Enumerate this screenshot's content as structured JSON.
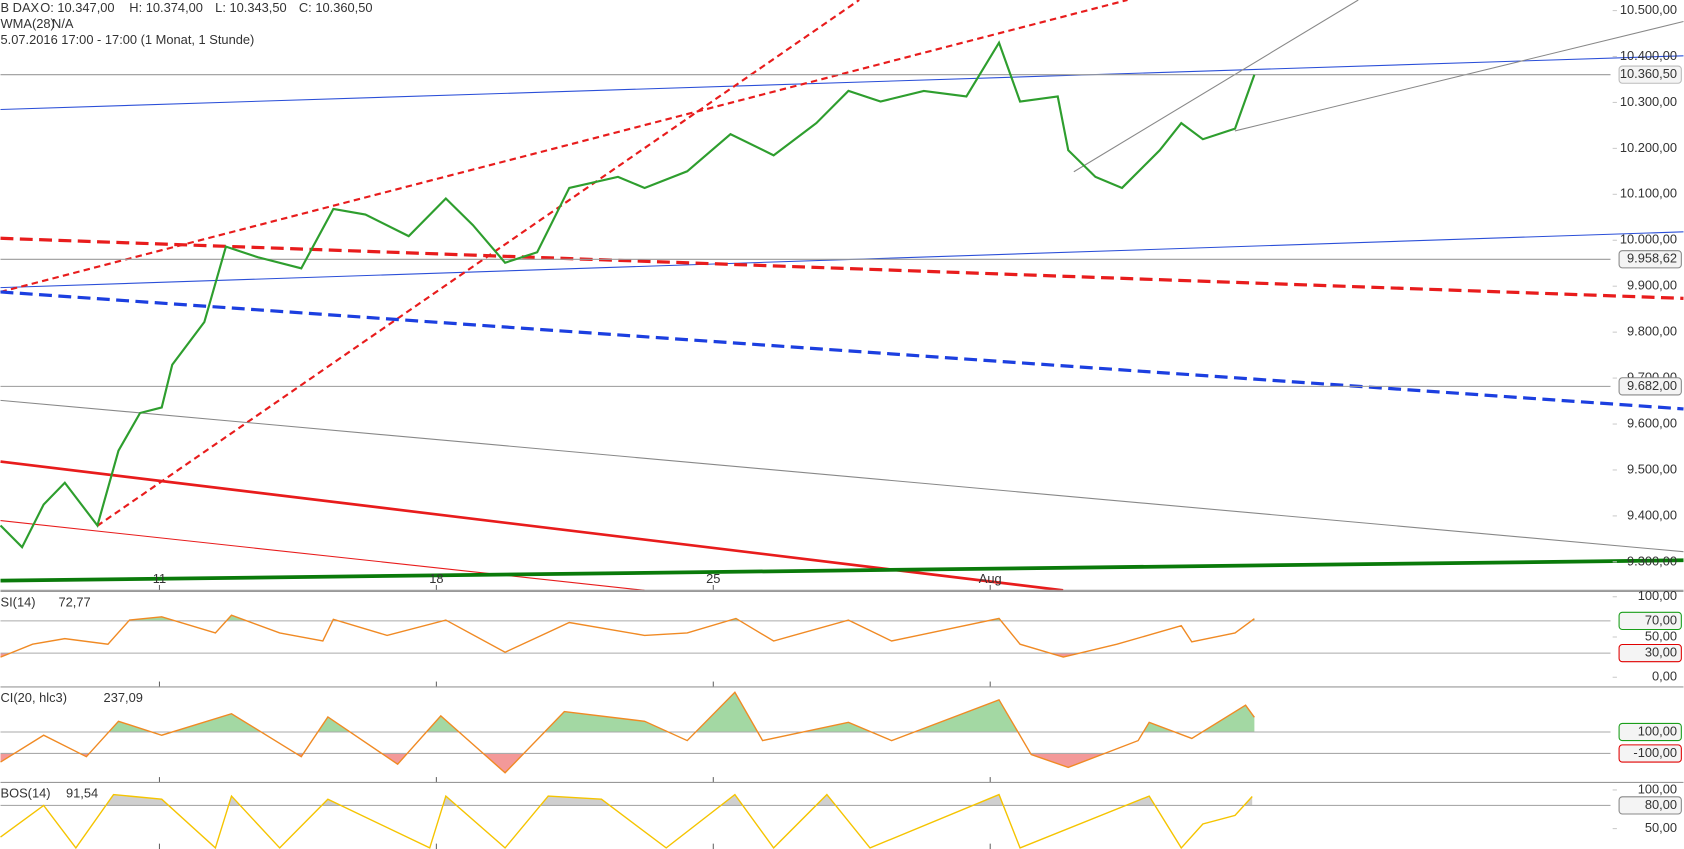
{
  "chart_data": [
    {
      "type": "line",
      "title": "B DAX",
      "annotations": [
        "O: 10.347,00",
        "H: 10.374,00",
        "L: 10.343,50",
        "C: 10.360,50",
        "WMA(28)",
        "N/A",
        "5.07.2016 17:00 - 17:00 (1 Monat, 1 Stunde)"
      ],
      "x": [
        -2.87,
        -2.48,
        -2.09,
        -1.71,
        -1.12,
        -0.74,
        -0.35,
        0.04,
        0.23,
        0.81,
        1.2,
        1.78,
        2.56,
        3.14,
        3.72,
        4.5,
        5.17,
        5.66,
        6.24,
        6.82,
        7.4,
        8.28,
        8.76,
        9.53,
        10.31,
        11.09,
        11.86,
        12.44,
        13.02,
        13.8,
        14.57,
        15.16,
        15.54,
        16.22,
        16.41,
        16.9,
        17.38,
        18.06,
        18.45,
        18.84,
        19.42,
        19.77
      ],
      "values": [
        9379,
        9332,
        9425,
        9472,
        9379,
        9542,
        9624,
        9636,
        9729,
        9822,
        9986,
        9963,
        9939,
        10068,
        10056,
        10009,
        10091,
        10033,
        9951,
        9974,
        10114,
        10138,
        10114,
        10150,
        10231,
        10185,
        10255,
        10325,
        10302,
        10325,
        10313,
        10430,
        10302,
        10313,
        10196,
        10138,
        10114,
        10196,
        10255,
        10220,
        10243,
        10360.5
      ],
      "color": "#2e9e2e",
      "xlim": [
        -2.87,
        26.2
      ],
      "xticks": [
        {
          "value": 0,
          "label": "11"
        },
        {
          "value": 5,
          "label": "18"
        },
        {
          "value": 10,
          "label": "25"
        },
        {
          "value": 15,
          "label": "Aug"
        }
      ],
      "ylim": [
        9238,
        10523
      ],
      "yticks": [
        {
          "value": 9300,
          "label": "9.300,00"
        },
        {
          "value": 9400,
          "label": "9.400,00"
        },
        {
          "value": 9500,
          "label": "9.500,00"
        },
        {
          "value": 9600,
          "label": "9.600,00"
        },
        {
          "value": 9700,
          "label": "9.700,00"
        },
        {
          "value": 9800,
          "label": "9.800,00"
        },
        {
          "value": 9900,
          "label": "9.900,00"
        },
        {
          "value": 10000,
          "label": "10.000,00"
        },
        {
          "value": 10100,
          "label": "10.100,00"
        },
        {
          "value": 10200,
          "label": "10.200,00"
        },
        {
          "value": 10300,
          "label": "10.300,00"
        },
        {
          "value": 10400,
          "label": "10.400,00"
        },
        {
          "value": 10500,
          "label": "10.500,00"
        }
      ],
      "levels": [
        {
          "value": 9958.62,
          "label": "9.958,62",
          "color": "#888888"
        },
        {
          "value": 9682,
          "label": "9.682,00",
          "color": "#888888"
        },
        {
          "value": 10360.5,
          "label": "10.360,50",
          "color": "#bbbbbb"
        }
      ]
    },
    {
      "type": "line",
      "title": "SI(14)",
      "annotations": [
        "72,77"
      ],
      "color": "#f08a24",
      "x": [
        -2.87,
        -2.29,
        -1.71,
        -0.93,
        -0.54,
        0.04,
        1.01,
        1.3,
        2.17,
        2.95,
        3.14,
        4.11,
        5.17,
        6.24,
        7.4,
        8.76,
        9.53,
        10.41,
        11.09,
        12.44,
        13.22,
        15.16,
        15.54,
        16.32,
        17.29,
        18.45,
        18.64,
        19.42,
        19.77
      ],
      "values": [
        25,
        41,
        48,
        41,
        71,
        75,
        55,
        77,
        55,
        45,
        72,
        52,
        71,
        31,
        68,
        52,
        55,
        73,
        45,
        71,
        45,
        73,
        41,
        25,
        41,
        64,
        44,
        55,
        72.77
      ],
      "ylim": [
        -12,
        105.3
      ],
      "yticks": [
        {
          "value": 100,
          "label": "100,00"
        },
        {
          "value": 50,
          "label": "50,00"
        },
        {
          "value": 0,
          "label": "0,00"
        }
      ],
      "levels": [
        {
          "value": 70,
          "label": "70,00",
          "color": "#1a9e1a",
          "fill": "above"
        },
        {
          "value": 30,
          "label": "30,00",
          "color": "#e00000",
          "fill": "below"
        }
      ]
    },
    {
      "type": "line",
      "title": "CI(20, hlc3)",
      "annotations": [
        "237,09"
      ],
      "color": "#f08a24",
      "x": [
        -2.87,
        -2.09,
        -1.32,
        -0.74,
        0.04,
        1.3,
        2.56,
        3.04,
        4.3,
        5.08,
        6.24,
        7.31,
        8.76,
        9.53,
        10.39,
        10.89,
        12.44,
        13.22,
        15.16,
        15.74,
        16.41,
        17.67,
        17.87,
        18.64,
        19.61,
        19.77
      ],
      "values": [
        -180,
        70,
        -130,
        200,
        70,
        270,
        -130,
        240,
        -200,
        250,
        -280,
        290,
        200,
        20,
        470,
        20,
        190,
        20,
        400,
        -110,
        -230,
        20,
        190,
        40,
        350,
        237.09
      ],
      "ylim": [
        -370,
        510
      ],
      "yticks": [],
      "levels": [
        {
          "value": 100,
          "label": "100,00",
          "color": "#1a9e1a",
          "fill": "above"
        },
        {
          "value": -100,
          "label": "-100,00",
          "color": "#e00000",
          "fill": "below"
        }
      ]
    },
    {
      "type": "line",
      "title": "BOS(14)",
      "annotations": [
        "91,54"
      ],
      "color": "#f5c400",
      "x": [
        -2.87,
        -2.09,
        -1.51,
        -0.83,
        0.04,
        1.01,
        1.3,
        2.17,
        3.04,
        4.88,
        5.17,
        6.24,
        7.02,
        7.98,
        9.15,
        10.39,
        11.09,
        12.05,
        12.83,
        15.16,
        15.54,
        17.87,
        18.45,
        18.84,
        19.42,
        19.73
      ],
      "values": [
        39,
        80,
        25,
        94,
        88,
        25,
        92,
        25,
        88,
        25,
        92,
        25,
        92,
        88,
        25,
        94,
        25,
        94,
        25,
        94,
        25,
        92,
        25,
        56,
        67,
        91.54
      ],
      "ylim": [
        23.6,
        108.3
      ],
      "yticks": [
        {
          "value": 100,
          "label": "100,00"
        },
        {
          "value": 50,
          "label": "50,00"
        }
      ],
      "levels": [
        {
          "value": 80,
          "label": "80,00",
          "color": "#888888",
          "fill": "above"
        }
      ]
    }
  ]
}
